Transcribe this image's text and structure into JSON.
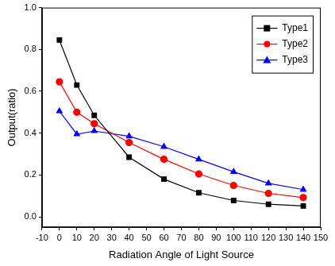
{
  "chart_data": {
    "type": "line",
    "x_label": "Radiation Angle of Light Source",
    "y_label": "Output(ratio)",
    "x": [
      0,
      10,
      20,
      40,
      60,
      80,
      100,
      120,
      140
    ],
    "series": [
      {
        "name": "Type1",
        "color": "#000000",
        "marker": "square",
        "values": [
          0.845,
          0.63,
          0.485,
          0.285,
          0.18,
          0.115,
          0.078,
          0.06,
          0.052
        ]
      },
      {
        "name": "Type2",
        "color": "#ff0000",
        "marker": "circle",
        "values": [
          0.645,
          0.5,
          0.445,
          0.355,
          0.275,
          0.205,
          0.15,
          0.112,
          0.092
        ]
      },
      {
        "name": "Type3",
        "color": "#0000ff",
        "marker": "triangle",
        "values": [
          0.505,
          0.395,
          0.41,
          0.385,
          0.335,
          0.275,
          0.215,
          0.16,
          0.13
        ]
      }
    ],
    "xlim": [
      -10,
      150
    ],
    "xticks": [
      -10,
      0,
      10,
      20,
      30,
      40,
      50,
      60,
      70,
      80,
      90,
      100,
      110,
      120,
      130,
      140,
      150
    ],
    "ylim": [
      -0.05,
      1.0
    ],
    "yticks": [
      {
        "value": 0,
        "label": "0.0"
      },
      0.2,
      0.4,
      0.6,
      0.8,
      {
        "value": 1,
        "label": "1.0"
      }
    ],
    "grid": false,
    "legend": "upper right"
  }
}
